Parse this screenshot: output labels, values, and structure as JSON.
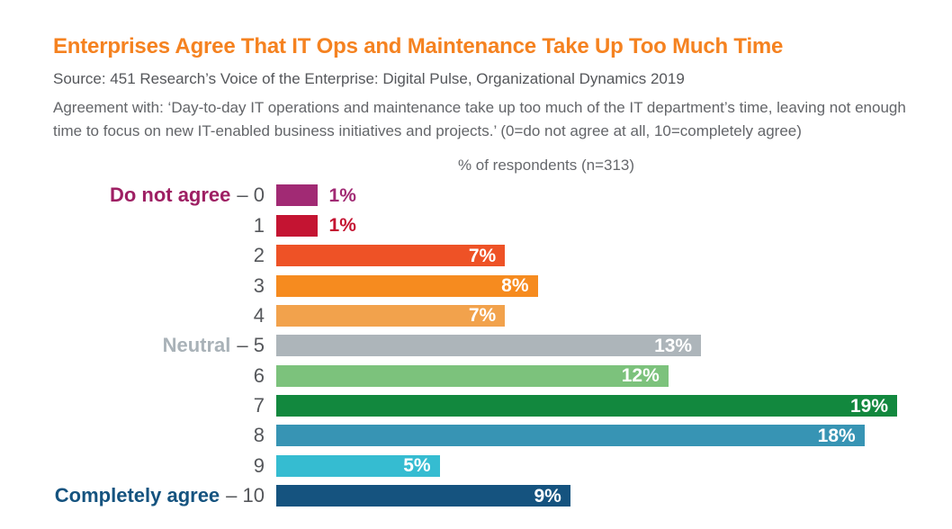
{
  "header": {
    "title": "Enterprises Agree That IT Ops and Maintenance Take Up Too Much Time",
    "title_color": "#F58220",
    "source": "Source: 451 Research’s Voice of the Enterprise: Digital Pulse, Organizational Dynamics 2019",
    "description": "Agreement with: ‘Day-to-day IT operations and maintenance take up too much of the IT department’s time, leaving not enough time to focus on new IT-enabled business initiatives and projects.’ (0=do not agree at all, 10=completely agree)"
  },
  "chart_data": {
    "type": "bar",
    "orientation": "horizontal",
    "axis_title": "% of respondents (n=313)",
    "n_respondents": 313,
    "xlim": [
      0,
      19
    ],
    "value_suffix": "%",
    "categories": [
      "0",
      "1",
      "2",
      "3",
      "4",
      "5",
      "6",
      "7",
      "8",
      "9",
      "10"
    ],
    "values": [
      1,
      1,
      7,
      8,
      7,
      13,
      12,
      19,
      18,
      5,
      9
    ],
    "scale_note": "0=do not agree at all, 10=completely agree",
    "rows": [
      {
        "prefix": "Do not agree",
        "prefix_color": "#9E1F63",
        "tick": "– 0",
        "value": 1,
        "value_label": "1%",
        "bar_color": "#A12A74",
        "value_label_position": "outside"
      },
      {
        "prefix": "",
        "prefix_color": "",
        "tick": "1",
        "value": 1,
        "value_label": "1%",
        "bar_color": "#C41432",
        "value_label_position": "outside"
      },
      {
        "prefix": "",
        "prefix_color": "",
        "tick": "2",
        "value": 7,
        "value_label": "7%",
        "bar_color": "#EE5226",
        "value_label_position": "inside"
      },
      {
        "prefix": "",
        "prefix_color": "",
        "tick": "3",
        "value": 8,
        "value_label": "8%",
        "bar_color": "#F68B1F",
        "value_label_position": "inside"
      },
      {
        "prefix": "",
        "prefix_color": "",
        "tick": "4",
        "value": 7,
        "value_label": "7%",
        "bar_color": "#F2A24C",
        "value_label_position": "inside"
      },
      {
        "prefix": "Neutral",
        "prefix_color": "#A9B2B8",
        "tick": "– 5",
        "value": 13,
        "value_label": "13%",
        "bar_color": "#ADB5BA",
        "value_label_position": "inside"
      },
      {
        "prefix": "",
        "prefix_color": "",
        "tick": "6",
        "value": 12,
        "value_label": "12%",
        "bar_color": "#7CC27C",
        "value_label_position": "inside"
      },
      {
        "prefix": "",
        "prefix_color": "",
        "tick": "7",
        "value": 19,
        "value_label": "19%",
        "bar_color": "#12883E",
        "value_label_position": "inside"
      },
      {
        "prefix": "",
        "prefix_color": "",
        "tick": "8",
        "value": 18,
        "value_label": "18%",
        "bar_color": "#3794B4",
        "value_label_position": "inside"
      },
      {
        "prefix": "",
        "prefix_color": "",
        "tick": "9",
        "value": 5,
        "value_label": "5%",
        "bar_color": "#35BCD1",
        "value_label_position": "inside"
      },
      {
        "prefix": "Completely agree",
        "prefix_color": "#15537F",
        "tick": "– 10",
        "value": 9,
        "value_label": "9%",
        "bar_color": "#15537F",
        "value_label_position": "inside"
      }
    ]
  }
}
